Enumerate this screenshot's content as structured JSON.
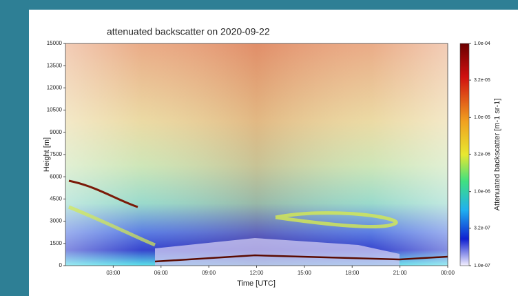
{
  "chart_data": {
    "type": "raster",
    "title": "attenuated backscatter on 2020-09-22",
    "x_label": "Time [UTC]",
    "y_label": "Height [m]",
    "xlim": [
      0,
      24
    ],
    "xticks": [
      {
        "value": 3,
        "label": "03:00"
      },
      {
        "value": 6,
        "label": "06:00"
      },
      {
        "value": 9,
        "label": "09:00"
      },
      {
        "value": 12,
        "label": "12:00"
      },
      {
        "value": 15,
        "label": "15:00"
      },
      {
        "value": 18,
        "label": "18:00"
      },
      {
        "value": 21,
        "label": "21:00"
      },
      {
        "value": 24,
        "label": "00:00"
      }
    ],
    "ylim": [
      0,
      15000
    ],
    "yticks": [
      0,
      1500,
      3000,
      4500,
      6000,
      7500,
      9000,
      10500,
      12000,
      13500,
      15000
    ],
    "colorbar": {
      "label": "Attenuated backscatter [m-1 sr-1]",
      "log_scale": true,
      "lim": [
        1e-07,
        0.0001
      ],
      "ticks": [
        {
          "value": 0.0001,
          "label": "1.0e-04"
        },
        {
          "value": 3.2e-05,
          "label": "3.2e-05"
        },
        {
          "value": 1e-05,
          "label": "1.0e-05"
        },
        {
          "value": 3.2e-06,
          "label": "3.2e-06"
        },
        {
          "value": 1e-06,
          "label": "1.0e-06"
        },
        {
          "value": 3.2e-07,
          "label": "3.2e-07"
        },
        {
          "value": 1e-07,
          "label": "1.0e-07"
        }
      ]
    }
  }
}
